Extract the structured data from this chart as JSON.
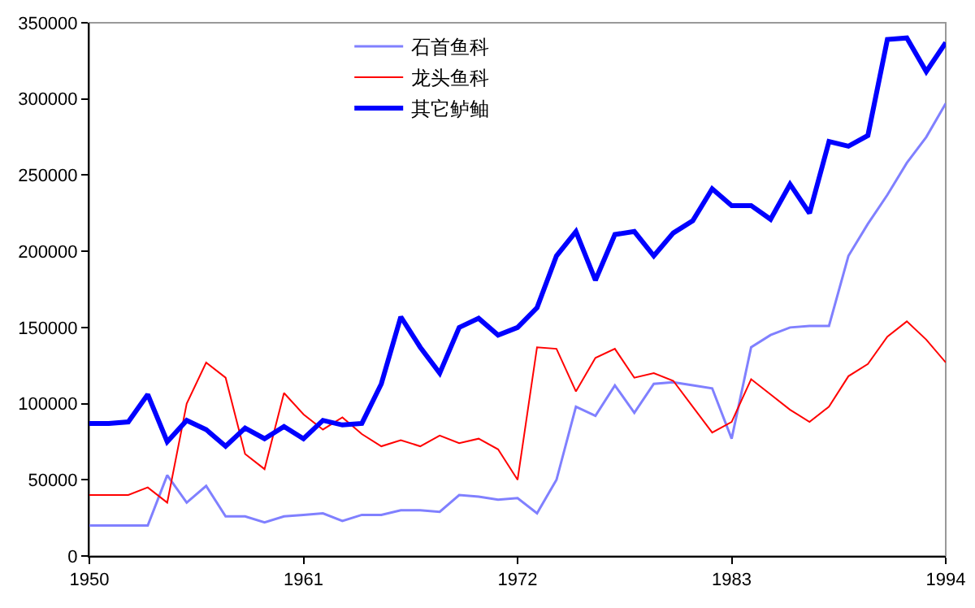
{
  "chart_data": {
    "type": "line",
    "x": [
      1950,
      1951,
      1952,
      1953,
      1954,
      1955,
      1956,
      1957,
      1958,
      1959,
      1960,
      1961,
      1962,
      1963,
      1964,
      1965,
      1966,
      1967,
      1968,
      1969,
      1970,
      1971,
      1972,
      1973,
      1974,
      1975,
      1976,
      1977,
      1978,
      1979,
      1980,
      1981,
      1982,
      1983,
      1984,
      1985,
      1986,
      1987,
      1988,
      1989,
      1990,
      1991,
      1992,
      1993,
      1994
    ],
    "series": [
      {
        "name": "石首鱼科",
        "color": "#8080ff",
        "values": [
          20000,
          20000,
          20000,
          20000,
          53000,
          35000,
          46000,
          26000,
          26000,
          22000,
          26000,
          27000,
          28000,
          23000,
          27000,
          27000,
          30000,
          30000,
          29000,
          40000,
          39000,
          37000,
          38000,
          28000,
          50000,
          98000,
          92000,
          112000,
          94000,
          113000,
          114000,
          112000,
          110000,
          77000,
          137000,
          145000,
          150000,
          151000,
          151000,
          197000,
          218000,
          237000,
          258000,
          275000,
          297000
        ]
      },
      {
        "name": "龙头鱼科",
        "color": "#ff0000",
        "values": [
          40000,
          40000,
          40000,
          45000,
          35000,
          100000,
          127000,
          117000,
          67000,
          57000,
          107000,
          93000,
          83000,
          91000,
          80000,
          72000,
          76000,
          72000,
          79000,
          74000,
          77000,
          70000,
          50000,
          137000,
          136000,
          108000,
          130000,
          136000,
          117000,
          120000,
          115000,
          98000,
          81000,
          88000,
          116000,
          106000,
          96000,
          88000,
          98000,
          118000,
          126000,
          144000,
          154000,
          142000,
          127000
        ]
      },
      {
        "name": "其它鲈鲉",
        "color": "#0000ff",
        "values": [
          87000,
          87000,
          88000,
          106000,
          75000,
          89000,
          83000,
          72000,
          84000,
          77000,
          85000,
          77000,
          89000,
          86000,
          87000,
          113000,
          157000,
          137000,
          120000,
          150000,
          156000,
          145000,
          150000,
          163000,
          197000,
          213000,
          181000,
          211000,
          213000,
          197000,
          212000,
          220000,
          241000,
          230000,
          230000,
          221000,
          244000,
          225000,
          272000,
          269000,
          276000,
          339000,
          340000,
          318000,
          337000
        ]
      }
    ],
    "xlim": [
      1950,
      1994
    ],
    "xticks": [
      1950,
      1961,
      1972,
      1983,
      1994
    ],
    "ylim": [
      0,
      350000
    ],
    "yticks": [
      0,
      50000,
      100000,
      150000,
      200000,
      250000,
      300000,
      350000
    ],
    "grid": false,
    "legend": "top",
    "marker": "none",
    "line_style": "solid"
  }
}
